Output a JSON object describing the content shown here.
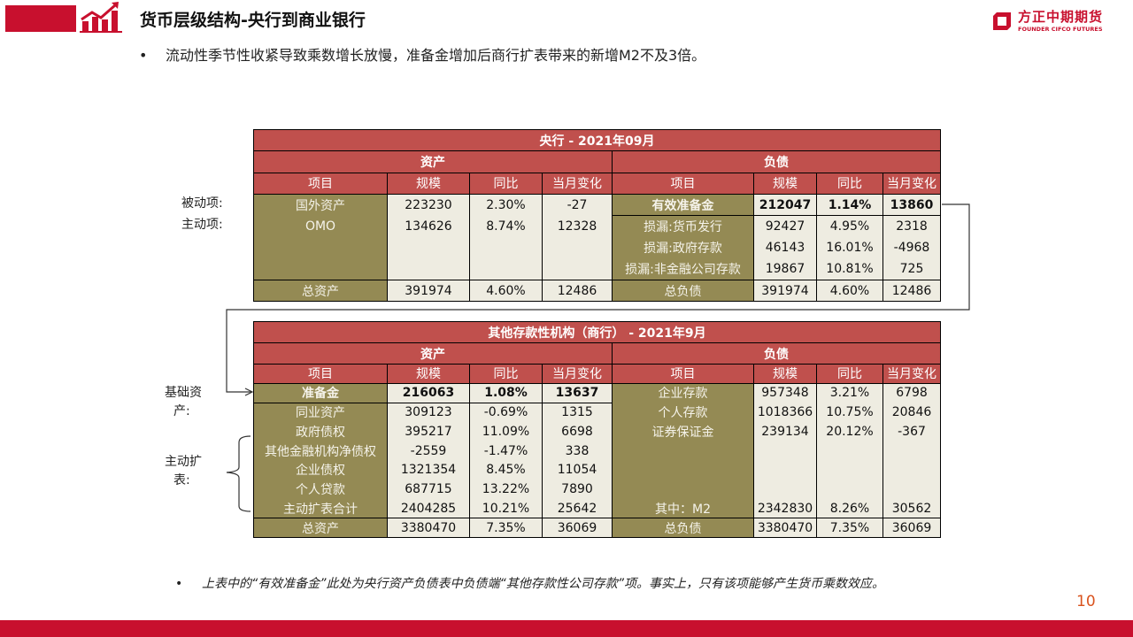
{
  "header": {
    "title": "货币层级结构-央行到商业银行",
    "bullet": "流动性季节性收紧导致乘数增长放慢，准备金增加后商行扩表带来的新增M2不及3倍。"
  },
  "brand": {
    "name_cn": "方正中期期货",
    "name_en": "FOUNDER CIFCO FUTURES"
  },
  "colors": {
    "brand": "#C8102E",
    "header_red": "#C0504D",
    "olive": "#948A54",
    "cream": "#EEECE1"
  },
  "table1": {
    "title": "央行 - 2021年09月",
    "assets_label": "资产",
    "liabilities_label": "负债",
    "columns": [
      "项目",
      "规模",
      "同比",
      "当月变化"
    ],
    "assets": [
      [
        "国外资产",
        "223230",
        "2.30%",
        "-27"
      ],
      [
        "OMO",
        "134626",
        "8.74%",
        "12328"
      ]
    ],
    "assets_total": [
      "总资产",
      "391974",
      "4.60%",
      "12486"
    ],
    "liabilities": [
      [
        "有效准备金",
        "212047",
        "1.14%",
        "13860"
      ],
      [
        "损漏:货币发行",
        "92427",
        "4.95%",
        "2318"
      ],
      [
        "损漏:政府存款",
        "46143",
        "16.01%",
        "-4968"
      ],
      [
        "损漏:非金融公司存款",
        "19867",
        "10.81%",
        "725"
      ]
    ],
    "liabilities_total": [
      "总负债",
      "391974",
      "4.60%",
      "12486"
    ]
  },
  "table2": {
    "title": "其他存款性机构（商行） - 2021年9月",
    "assets_label": "资产",
    "liabilities_label": "负债",
    "columns": [
      "项目",
      "规模",
      "同比",
      "当月变化"
    ],
    "assets": [
      [
        "准备金",
        "216063",
        "1.08%",
        "13637"
      ],
      [
        "同业资产",
        "309123",
        "-0.69%",
        "1315"
      ],
      [
        "政府债权",
        "395217",
        "11.09%",
        "6698"
      ],
      [
        "其他金融机构净债权",
        "-2559",
        "-1.47%",
        "338"
      ],
      [
        "企业债权",
        "1321354",
        "8.45%",
        "11054"
      ],
      [
        "个人贷款",
        "687715",
        "13.22%",
        "7890"
      ],
      [
        "主动扩表合计",
        "2404285",
        "10.21%",
        "25642"
      ]
    ],
    "assets_total": [
      "总资产",
      "3380470",
      "7.35%",
      "36069"
    ],
    "liabilities": [
      [
        "企业存款",
        "957348",
        "3.21%",
        "6798"
      ],
      [
        "个人存款",
        "1018366",
        "10.75%",
        "20846"
      ],
      [
        "证券保证金",
        "239134",
        "20.12%",
        "-367"
      ]
    ],
    "liabilities_m2": [
      "其中：M2",
      "2342830",
      "8.26%",
      "30562"
    ],
    "liabilities_total": [
      "总负债",
      "3380470",
      "7.35%",
      "36069"
    ]
  },
  "side_labels": {
    "passive": "被动项:",
    "active": "主动项:",
    "base_asset_1": "基础资",
    "base_asset_2": "产:",
    "expand_1": "主动扩",
    "expand_2": "表:"
  },
  "footnote": {
    "bullet": "•",
    "text": "上表中的“有效准备金”此处为央行资产负债表中负债端“其他存款性公司存款”项。事实上，只有该项能够产生货币乘数效应。"
  },
  "page_number": "10"
}
